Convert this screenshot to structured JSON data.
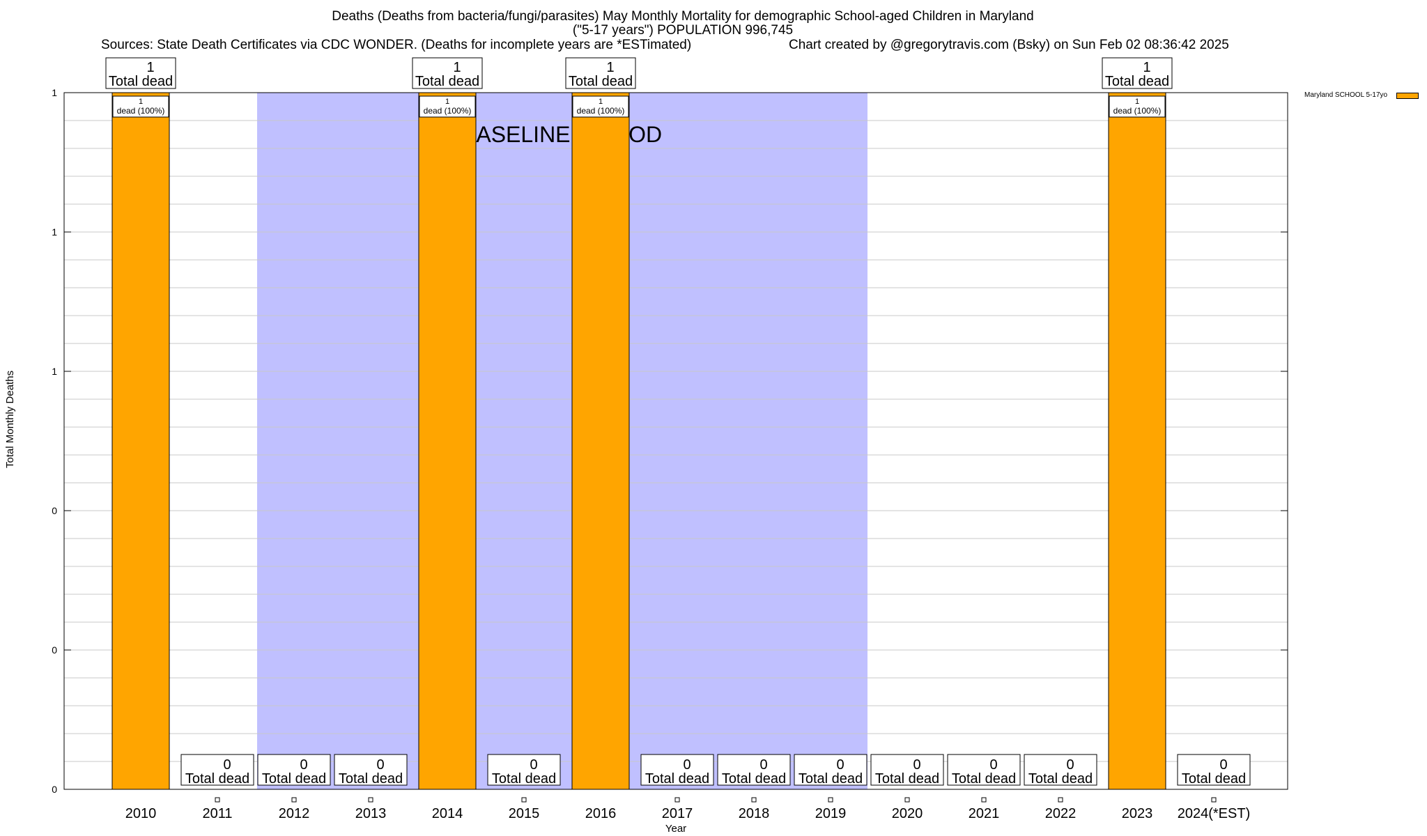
{
  "header": {
    "title_line1": "Deaths (Deaths from bacteria/fungi/parasites) May Monthly Mortality for demographic School-aged Children in Maryland",
    "title_line2": "(\"5-17 years\") POPULATION 996,745",
    "sources": "Sources: State Death Certificates via CDC WONDER. (Deaths for incomplete years are *ESTimated)",
    "credit": "Chart created by @gregorytravis.com (Bsky) on Sun Feb 02 08:36:42 2025"
  },
  "legend": {
    "label": "Maryland SCHOOL 5-17yo",
    "color": "#FFA500"
  },
  "chart_data": {
    "type": "bar",
    "xlabel": "Year",
    "ylabel": "Total Monthly Deaths",
    "categories": [
      "2010",
      "2011",
      "2012",
      "2013",
      "2014",
      "2015",
      "2016",
      "2017",
      "2018",
      "2019",
      "2020",
      "2021",
      "2022",
      "2023",
      "2024(*EST)"
    ],
    "series": [
      {
        "name": "Maryland SCHOOL 5-17yo",
        "values": [
          1,
          0,
          0,
          0,
          1,
          0,
          1,
          0,
          0,
          0,
          0,
          0,
          0,
          1,
          0
        ]
      }
    ],
    "ylim": [
      0,
      1
    ],
    "ytick_labels": [
      "0",
      "0",
      "0",
      "1",
      "1",
      "1"
    ],
    "baseline_period": {
      "label": "BASELINE PERIOD",
      "from": "2012",
      "to": "2019",
      "color": "#C0C0FF"
    },
    "top_annotation": "Total dead",
    "bar_annotation": "dead (100%)",
    "grid": true,
    "legend_position": "top-right"
  }
}
